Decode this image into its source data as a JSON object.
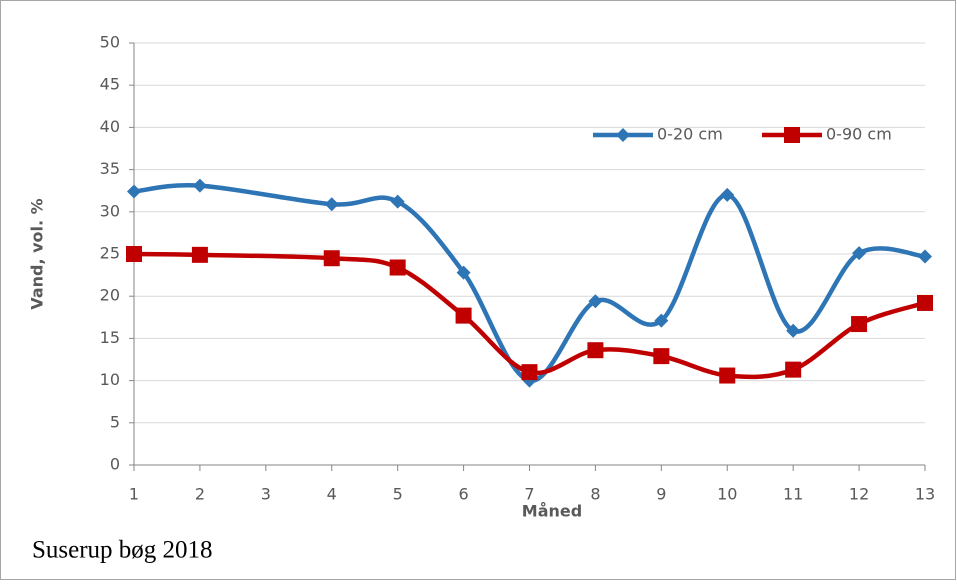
{
  "chart_data": {
    "type": "line",
    "smooth": true,
    "x_label": "Måned",
    "y_label": "Vand, vol. %",
    "annotation": "Suserup bøg 2018",
    "x": [
      1,
      2,
      4,
      5,
      6,
      7,
      8,
      9,
      10,
      11,
      12,
      13
    ],
    "xlim": [
      1,
      13
    ],
    "xticks": [
      1,
      2,
      3,
      4,
      5,
      6,
      7,
      8,
      9,
      10,
      11,
      12,
      13
    ],
    "ylim": [
      0,
      50
    ],
    "yticks": [
      0,
      5,
      10,
      15,
      20,
      25,
      30,
      35,
      40,
      45,
      50
    ],
    "grid": true,
    "legend": "top-right",
    "series": [
      {
        "name": "0-20 cm",
        "color": "#2e75b6",
        "marker": "diamond",
        "values": [
          32.4,
          33.1,
          30.9,
          31.2,
          22.8,
          10.0,
          19.4,
          17.1,
          32.0,
          15.9,
          25.1,
          24.7
        ]
      },
      {
        "name": "0-90 cm",
        "color": "#c00000",
        "marker": "square",
        "values": [
          25.0,
          24.9,
          24.5,
          23.4,
          17.7,
          11.0,
          13.6,
          12.9,
          10.6,
          11.3,
          16.7,
          19.2
        ]
      }
    ]
  }
}
